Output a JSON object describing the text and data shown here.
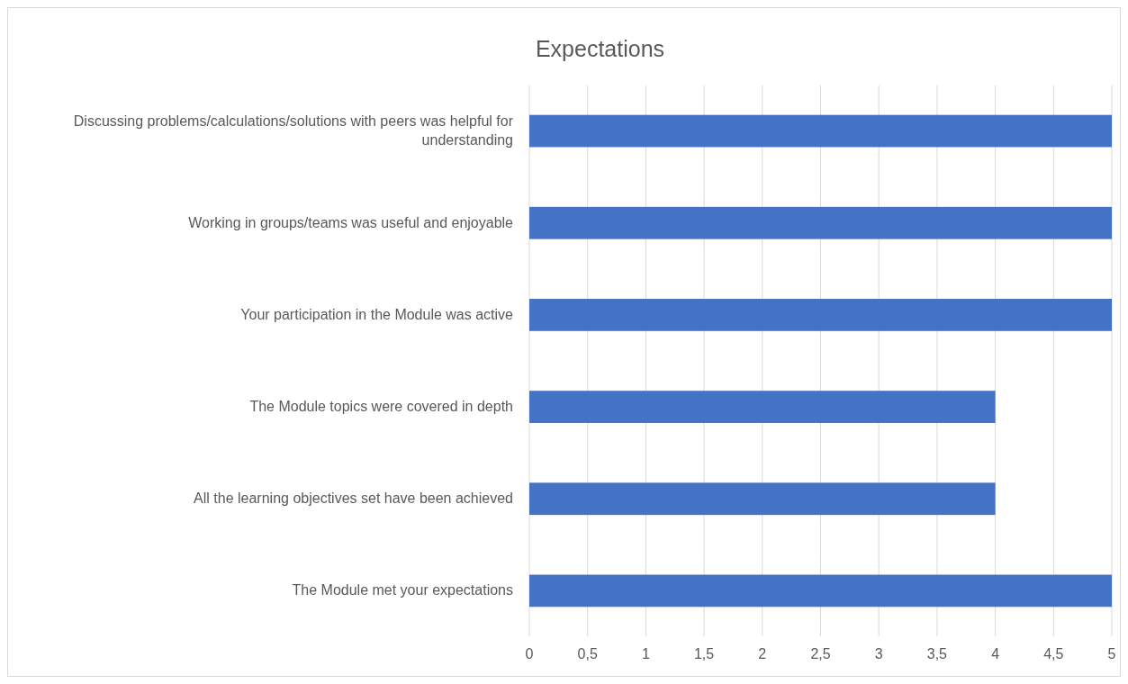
{
  "chart_data": {
    "type": "bar",
    "orientation": "horizontal",
    "title": "Expectations",
    "categories": [
      "Discussing problems/calculations/solutions with peers was helpful for understanding",
      "Working in groups/teams was useful and enjoyable",
      "Your participation in the Module was active",
      "The Module topics were covered in depth",
      "All the learning objectives set have been achieved",
      "The Module met your expectations"
    ],
    "values": [
      5,
      5,
      5,
      4,
      4,
      5
    ],
    "color": "#4472c4",
    "xlim": [
      0,
      5
    ],
    "xticks": [
      0,
      {
        "value": 0.5,
        "label": "0,5"
      },
      1,
      {
        "value": 1.5,
        "label": "1,5"
      },
      2,
      {
        "value": 2.5,
        "label": "2,5"
      },
      3,
      {
        "value": 3.5,
        "label": "3,5"
      },
      4,
      {
        "value": 4.5,
        "label": "4,5"
      },
      5
    ],
    "grid": "x"
  }
}
